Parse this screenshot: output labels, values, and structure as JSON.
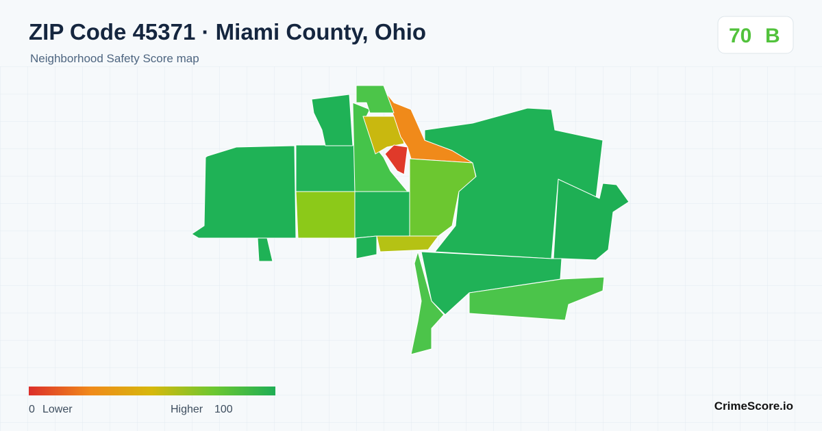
{
  "header": {
    "title": "ZIP Code 45371 · Miami County, Ohio",
    "subtitle": "Neighborhood Safety Score map"
  },
  "score": {
    "value": 70,
    "grade": "B"
  },
  "legend": {
    "min": 0,
    "min_label": "Lower",
    "max_label": "Higher",
    "max": 100
  },
  "brand": "CrimeScore.io"
}
